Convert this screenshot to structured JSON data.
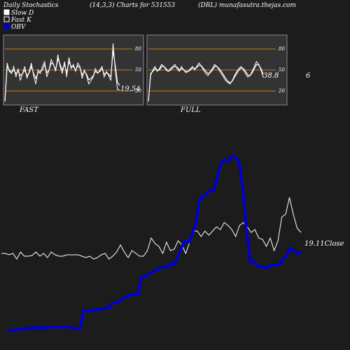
{
  "header": {
    "title_left": "Daily Stochastics",
    "title_mid": "(14,3,3) Charts for 531553",
    "title_right": "(DRL) munafasutra.thejas.com"
  },
  "legend": [
    {
      "name": "Slow  D",
      "swatch": "#ffffff"
    },
    {
      "name": "Fast K",
      "swatch": "#ffffff"
    },
    {
      "name": "OBV",
      "swatch": "#0000cc"
    }
  ],
  "colors": {
    "background": "#1c1c1c",
    "panel": "#333333",
    "grid": "#cc7a00",
    "obv": "#0000cc",
    "price": "#ffffff"
  },
  "chart_data": [
    {
      "type": "line",
      "title": "FAST",
      "ylim": [
        0,
        100
      ],
      "ticks": [
        "80",
        "50",
        "20"
      ],
      "tick_values": [
        80,
        50,
        20
      ],
      "last_value_label": "19.54",
      "series": [
        {
          "values": [
            5,
            60,
            48,
            45,
            55,
            40,
            52,
            35,
            45,
            55,
            38,
            48,
            60,
            42,
            30,
            50,
            45,
            55,
            62,
            40,
            50,
            65,
            58,
            48,
            72,
            55,
            45,
            62,
            40,
            68,
            52,
            58,
            48,
            60,
            55,
            38,
            50,
            42,
            30,
            35,
            40,
            52,
            45,
            50,
            55,
            40,
            48,
            42,
            35,
            88,
            50,
            22,
            22
          ]
        },
        {
          "values": [
            5,
            55,
            50,
            47,
            50,
            45,
            48,
            42,
            45,
            50,
            42,
            46,
            55,
            45,
            38,
            46,
            48,
            50,
            58,
            46,
            50,
            60,
            58,
            50,
            66,
            58,
            50,
            58,
            46,
            62,
            55,
            55,
            50,
            56,
            53,
            43,
            48,
            44,
            36,
            38,
            42,
            48,
            46,
            48,
            52,
            44,
            46,
            44,
            40,
            78,
            56,
            32,
            28
          ]
        }
      ]
    },
    {
      "type": "line",
      "title": "FULL",
      "ylim": [
        0,
        100
      ],
      "ticks": [
        "80",
        "50",
        "20"
      ],
      "tick_values": [
        80,
        50,
        20
      ],
      "last_value_label": "38.8",
      "series": [
        {
          "values": [
            5,
            42,
            50,
            55,
            48,
            52,
            58,
            55,
            50,
            48,
            52,
            55,
            58,
            52,
            48,
            55,
            50,
            46,
            48,
            52,
            55,
            50,
            56,
            60,
            55,
            50,
            45,
            42,
            48,
            52,
            58,
            55,
            50,
            45,
            40,
            35,
            32,
            30,
            35,
            42,
            48,
            52,
            55,
            50,
            45,
            40,
            42,
            48,
            55,
            62,
            58,
            50,
            40
          ]
        },
        {
          "values": [
            5,
            45,
            48,
            52,
            50,
            50,
            55,
            55,
            52,
            48,
            50,
            53,
            55,
            54,
            50,
            52,
            50,
            48,
            48,
            50,
            53,
            52,
            54,
            57,
            56,
            52,
            48,
            45,
            46,
            50,
            55,
            55,
            52,
            48,
            43,
            38,
            34,
            32,
            34,
            40,
            45,
            50,
            53,
            52,
            48,
            43,
            42,
            46,
            52,
            58,
            57,
            52,
            44
          ]
        }
      ]
    },
    {
      "type": "line",
      "title": "",
      "close_label": "19.11Close",
      "right_value_label": "6",
      "series": [
        {
          "name": "OBV",
          "values": [
            18,
            18,
            19,
            20,
            20,
            20,
            22,
            22,
            22,
            22,
            22,
            22,
            23,
            23,
            23,
            23,
            23,
            23,
            21,
            21,
            21,
            46,
            46,
            46,
            48,
            48,
            49,
            50,
            50,
            58,
            58,
            60,
            66,
            66,
            70,
            70,
            70,
            94,
            96,
            98,
            102,
            104,
            108,
            110,
            108,
            114,
            112,
            124,
            136,
            146,
            144,
            156,
            172,
            206,
            210,
            214,
            218,
            220,
            240,
            258,
            262,
            260,
            268,
            266,
            256,
            216,
            158,
            116,
            116,
            110,
            110,
            108,
            108,
            112,
            112,
            112,
            120,
            126,
            136,
            132,
            128,
            130
          ],
          "x_range": [
            0,
            82
          ]
        },
        {
          "name": "Price",
          "values": [
            128,
            128,
            126,
            128,
            120,
            130,
            124,
            124,
            125,
            130,
            124,
            128,
            122,
            130,
            126,
            124,
            124,
            126,
            126,
            126,
            126,
            124,
            122,
            124,
            120,
            122,
            126,
            128,
            120,
            124,
            130,
            140,
            130,
            122,
            132,
            128,
            124,
            124,
            132,
            150,
            142,
            138,
            128,
            144,
            132,
            134,
            146,
            140,
            128,
            144,
            160,
            160,
            152,
            160,
            154,
            160,
            166,
            162,
            172,
            168,
            162,
            152,
            168,
            172,
            166,
            158,
            162,
            150,
            148,
            138,
            150,
            132,
            146,
            180,
            184,
            208,
            184,
            164,
            158
          ],
          "x_range": [
            0,
            82
          ]
        }
      ]
    }
  ],
  "footer": {
    "fast_label": "FAST",
    "full_label": "FULL"
  }
}
